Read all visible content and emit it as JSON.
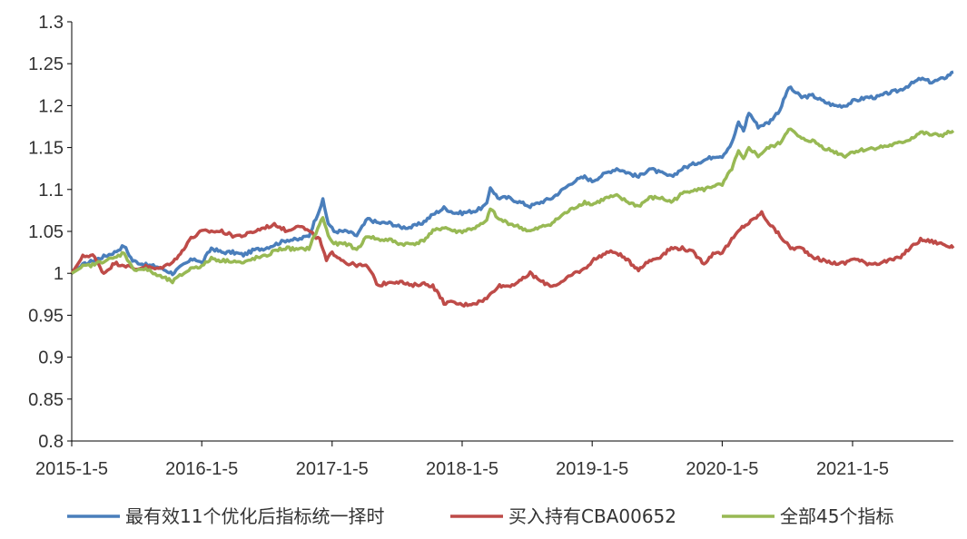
{
  "chart_data": {
    "type": "line",
    "title": "",
    "xlabel": "",
    "ylabel": "",
    "x_range": [
      "2015-01-05",
      "2021-10-15"
    ],
    "x_ticks": [
      "2015-1-5",
      "2016-1-5",
      "2017-1-5",
      "2018-1-5",
      "2019-1-5",
      "2020-1-5",
      "2021-1-5"
    ],
    "ylim": [
      0.8,
      1.3
    ],
    "y_ticks": [
      "0.8",
      "0.85",
      "0.9",
      "0.95",
      "1",
      "1.05",
      "1.1",
      "1.15",
      "1.2",
      "1.25",
      "1.3"
    ],
    "grid": false,
    "legend_position": "bottom",
    "series": [
      {
        "name": "最有效11个优化后指标统一择时",
        "color": "#4a7ebb",
        "points": [
          [
            "2015-01-05",
            1.0
          ],
          [
            "2015-02-05",
            1.01
          ],
          [
            "2015-03-05",
            1.015
          ],
          [
            "2015-04-05",
            1.02
          ],
          [
            "2015-05-05",
            1.025
          ],
          [
            "2015-06-01",
            1.033
          ],
          [
            "2015-06-25",
            1.015
          ],
          [
            "2015-08-01",
            1.01
          ],
          [
            "2015-09-01",
            1.008
          ],
          [
            "2015-10-15",
            1.0
          ],
          [
            "2015-11-15",
            1.01
          ],
          [
            "2015-12-15",
            1.018
          ],
          [
            "2016-01-05",
            1.012
          ],
          [
            "2016-02-01",
            1.03
          ],
          [
            "2016-03-01",
            1.025
          ],
          [
            "2016-04-01",
            1.025
          ],
          [
            "2016-05-01",
            1.022
          ],
          [
            "2016-06-01",
            1.028
          ],
          [
            "2016-07-01",
            1.03
          ],
          [
            "2016-08-01",
            1.035
          ],
          [
            "2016-09-01",
            1.04
          ],
          [
            "2016-10-01",
            1.04
          ],
          [
            "2016-11-01",
            1.045
          ],
          [
            "2016-12-10",
            1.087
          ],
          [
            "2016-12-25",
            1.06
          ],
          [
            "2017-01-10",
            1.05
          ],
          [
            "2017-02-15",
            1.05
          ],
          [
            "2017-03-15",
            1.045
          ],
          [
            "2017-04-15",
            1.065
          ],
          [
            "2017-05-15",
            1.06
          ],
          [
            "2017-06-15",
            1.06
          ],
          [
            "2017-07-15",
            1.055
          ],
          [
            "2017-08-15",
            1.055
          ],
          [
            "2017-09-15",
            1.06
          ],
          [
            "2017-10-15",
            1.07
          ],
          [
            "2017-11-15",
            1.078
          ],
          [
            "2017-12-15",
            1.072
          ],
          [
            "2018-01-05",
            1.072
          ],
          [
            "2018-02-15",
            1.075
          ],
          [
            "2018-03-15",
            1.082
          ],
          [
            "2018-03-25",
            1.103
          ],
          [
            "2018-04-15",
            1.09
          ],
          [
            "2018-05-15",
            1.09
          ],
          [
            "2018-06-15",
            1.085
          ],
          [
            "2018-07-15",
            1.08
          ],
          [
            "2018-08-15",
            1.085
          ],
          [
            "2018-09-15",
            1.09
          ],
          [
            "2018-10-15",
            1.1
          ],
          [
            "2018-11-15",
            1.11
          ],
          [
            "2018-12-15",
            1.115
          ],
          [
            "2019-01-05",
            1.11
          ],
          [
            "2019-02-15",
            1.12
          ],
          [
            "2019-03-15",
            1.125
          ],
          [
            "2019-04-15",
            1.12
          ],
          [
            "2019-05-15",
            1.115
          ],
          [
            "2019-06-15",
            1.125
          ],
          [
            "2019-07-15",
            1.12
          ],
          [
            "2019-08-15",
            1.115
          ],
          [
            "2019-09-15",
            1.125
          ],
          [
            "2019-10-15",
            1.13
          ],
          [
            "2019-11-15",
            1.135
          ],
          [
            "2019-12-15",
            1.14
          ],
          [
            "2020-01-05",
            1.14
          ],
          [
            "2020-02-01",
            1.155
          ],
          [
            "2020-02-20",
            1.18
          ],
          [
            "2020-03-05",
            1.17
          ],
          [
            "2020-03-20",
            1.192
          ],
          [
            "2020-04-15",
            1.175
          ],
          [
            "2020-05-15",
            1.18
          ],
          [
            "2020-06-15",
            1.195
          ],
          [
            "2020-07-10",
            1.222
          ],
          [
            "2020-08-15",
            1.21
          ],
          [
            "2020-09-15",
            1.212
          ],
          [
            "2020-10-15",
            1.205
          ],
          [
            "2020-11-15",
            1.2
          ],
          [
            "2020-12-15",
            1.2
          ],
          [
            "2021-01-05",
            1.205
          ],
          [
            "2021-02-15",
            1.21
          ],
          [
            "2021-03-15",
            1.21
          ],
          [
            "2021-04-15",
            1.215
          ],
          [
            "2021-05-15",
            1.218
          ],
          [
            "2021-06-15",
            1.225
          ],
          [
            "2021-07-15",
            1.232
          ],
          [
            "2021-08-15",
            1.228
          ],
          [
            "2021-09-15",
            1.232
          ],
          [
            "2021-10-15",
            1.24
          ]
        ]
      },
      {
        "name": "买入持有CBA00652",
        "color": "#be4b48",
        "points": [
          [
            "2015-01-05",
            1.0
          ],
          [
            "2015-02-05",
            1.02
          ],
          [
            "2015-03-05",
            1.022
          ],
          [
            "2015-04-05",
            1.0
          ],
          [
            "2015-05-05",
            1.012
          ],
          [
            "2015-06-01",
            1.01
          ],
          [
            "2015-07-01",
            1.005
          ],
          [
            "2015-08-01",
            1.008
          ],
          [
            "2015-09-01",
            1.005
          ],
          [
            "2015-10-01",
            1.01
          ],
          [
            "2015-11-01",
            1.02
          ],
          [
            "2015-12-01",
            1.04
          ],
          [
            "2016-01-05",
            1.05
          ],
          [
            "2016-02-01",
            1.05
          ],
          [
            "2016-03-01",
            1.05
          ],
          [
            "2016-04-01",
            1.045
          ],
          [
            "2016-05-01",
            1.045
          ],
          [
            "2016-06-01",
            1.05
          ],
          [
            "2016-07-01",
            1.055
          ],
          [
            "2016-08-01",
            1.058
          ],
          [
            "2016-09-01",
            1.05
          ],
          [
            "2016-10-01",
            1.058
          ],
          [
            "2016-11-01",
            1.05
          ],
          [
            "2016-12-01",
            1.04
          ],
          [
            "2016-12-20",
            1.015
          ],
          [
            "2017-01-05",
            1.025
          ],
          [
            "2017-02-15",
            1.012
          ],
          [
            "2017-03-15",
            1.01
          ],
          [
            "2017-04-15",
            1.008
          ],
          [
            "2017-05-15",
            0.985
          ],
          [
            "2017-06-15",
            0.99
          ],
          [
            "2017-07-15",
            0.99
          ],
          [
            "2017-08-15",
            0.985
          ],
          [
            "2017-09-15",
            0.988
          ],
          [
            "2017-10-15",
            0.985
          ],
          [
            "2017-11-15",
            0.965
          ],
          [
            "2017-12-15",
            0.965
          ],
          [
            "2018-01-05",
            0.962
          ],
          [
            "2018-02-15",
            0.965
          ],
          [
            "2018-03-15",
            0.97
          ],
          [
            "2018-04-15",
            0.985
          ],
          [
            "2018-05-15",
            0.985
          ],
          [
            "2018-06-15",
            0.99
          ],
          [
            "2018-07-15",
            1.0
          ],
          [
            "2018-08-15",
            0.99
          ],
          [
            "2018-09-15",
            0.985
          ],
          [
            "2018-10-15",
            0.99
          ],
          [
            "2018-11-15",
            1.0
          ],
          [
            "2018-12-15",
            1.005
          ],
          [
            "2019-01-05",
            1.015
          ],
          [
            "2019-02-15",
            1.025
          ],
          [
            "2019-03-15",
            1.025
          ],
          [
            "2019-04-15",
            1.015
          ],
          [
            "2019-05-15",
            1.005
          ],
          [
            "2019-06-15",
            1.015
          ],
          [
            "2019-07-15",
            1.02
          ],
          [
            "2019-08-15",
            1.03
          ],
          [
            "2019-09-15",
            1.03
          ],
          [
            "2019-10-15",
            1.025
          ],
          [
            "2019-11-15",
            1.012
          ],
          [
            "2019-12-15",
            1.025
          ],
          [
            "2020-01-05",
            1.025
          ],
          [
            "2020-02-01",
            1.04
          ],
          [
            "2020-03-01",
            1.055
          ],
          [
            "2020-03-20",
            1.06
          ],
          [
            "2020-04-25",
            1.072
          ],
          [
            "2020-05-15",
            1.06
          ],
          [
            "2020-06-15",
            1.045
          ],
          [
            "2020-07-15",
            1.03
          ],
          [
            "2020-08-15",
            1.03
          ],
          [
            "2020-09-15",
            1.02
          ],
          [
            "2020-10-15",
            1.015
          ],
          [
            "2020-11-15",
            1.012
          ],
          [
            "2020-12-15",
            1.012
          ],
          [
            "2021-01-05",
            1.018
          ],
          [
            "2021-02-15",
            1.012
          ],
          [
            "2021-03-15",
            1.012
          ],
          [
            "2021-04-15",
            1.015
          ],
          [
            "2021-05-15",
            1.018
          ],
          [
            "2021-06-15",
            1.03
          ],
          [
            "2021-07-15",
            1.04
          ],
          [
            "2021-08-15",
            1.038
          ],
          [
            "2021-09-15",
            1.035
          ],
          [
            "2021-10-15",
            1.03
          ]
        ]
      },
      {
        "name": "全部45个指标",
        "color": "#98b954",
        "points": [
          [
            "2015-01-05",
            1.0
          ],
          [
            "2015-02-05",
            1.008
          ],
          [
            "2015-03-05",
            1.01
          ],
          [
            "2015-04-05",
            1.015
          ],
          [
            "2015-05-05",
            1.018
          ],
          [
            "2015-06-01",
            1.025
          ],
          [
            "2015-06-25",
            1.005
          ],
          [
            "2015-08-01",
            1.005
          ],
          [
            "2015-09-01",
            0.998
          ],
          [
            "2015-10-15",
            0.99
          ],
          [
            "2015-11-15",
            1.0
          ],
          [
            "2015-12-15",
            1.008
          ],
          [
            "2016-01-05",
            1.008
          ],
          [
            "2016-02-01",
            1.018
          ],
          [
            "2016-03-01",
            1.015
          ],
          [
            "2016-04-01",
            1.015
          ],
          [
            "2016-05-01",
            1.012
          ],
          [
            "2016-06-01",
            1.018
          ],
          [
            "2016-07-01",
            1.02
          ],
          [
            "2016-08-01",
            1.028
          ],
          [
            "2016-09-01",
            1.03
          ],
          [
            "2016-10-01",
            1.028
          ],
          [
            "2016-11-01",
            1.03
          ],
          [
            "2016-12-10",
            1.067
          ],
          [
            "2016-12-25",
            1.045
          ],
          [
            "2017-01-10",
            1.035
          ],
          [
            "2017-02-15",
            1.035
          ],
          [
            "2017-03-15",
            1.028
          ],
          [
            "2017-04-15",
            1.045
          ],
          [
            "2017-05-15",
            1.04
          ],
          [
            "2017-06-15",
            1.04
          ],
          [
            "2017-07-15",
            1.035
          ],
          [
            "2017-08-15",
            1.035
          ],
          [
            "2017-09-15",
            1.038
          ],
          [
            "2017-10-15",
            1.05
          ],
          [
            "2017-11-15",
            1.055
          ],
          [
            "2017-12-15",
            1.05
          ],
          [
            "2018-01-05",
            1.05
          ],
          [
            "2018-02-15",
            1.055
          ],
          [
            "2018-03-15",
            1.062
          ],
          [
            "2018-03-25",
            1.078
          ],
          [
            "2018-04-15",
            1.065
          ],
          [
            "2018-05-15",
            1.06
          ],
          [
            "2018-06-15",
            1.055
          ],
          [
            "2018-07-15",
            1.05
          ],
          [
            "2018-08-15",
            1.055
          ],
          [
            "2018-09-15",
            1.06
          ],
          [
            "2018-10-15",
            1.07
          ],
          [
            "2018-11-15",
            1.078
          ],
          [
            "2018-12-15",
            1.085
          ],
          [
            "2019-01-05",
            1.082
          ],
          [
            "2019-02-15",
            1.09
          ],
          [
            "2019-03-15",
            1.092
          ],
          [
            "2019-04-15",
            1.085
          ],
          [
            "2019-05-15",
            1.08
          ],
          [
            "2019-06-15",
            1.09
          ],
          [
            "2019-07-15",
            1.09
          ],
          [
            "2019-08-15",
            1.085
          ],
          [
            "2019-09-15",
            1.095
          ],
          [
            "2019-10-15",
            1.1
          ],
          [
            "2019-11-15",
            1.1
          ],
          [
            "2019-12-15",
            1.105
          ],
          [
            "2020-01-05",
            1.105
          ],
          [
            "2020-02-01",
            1.125
          ],
          [
            "2020-02-20",
            1.145
          ],
          [
            "2020-03-05",
            1.135
          ],
          [
            "2020-03-20",
            1.15
          ],
          [
            "2020-04-15",
            1.14
          ],
          [
            "2020-05-15",
            1.15
          ],
          [
            "2020-06-15",
            1.155
          ],
          [
            "2020-07-10",
            1.173
          ],
          [
            "2020-08-15",
            1.16
          ],
          [
            "2020-09-15",
            1.158
          ],
          [
            "2020-10-15",
            1.15
          ],
          [
            "2020-11-15",
            1.145
          ],
          [
            "2020-12-15",
            1.14
          ],
          [
            "2021-01-05",
            1.145
          ],
          [
            "2021-02-15",
            1.148
          ],
          [
            "2021-03-15",
            1.15
          ],
          [
            "2021-04-15",
            1.152
          ],
          [
            "2021-05-15",
            1.155
          ],
          [
            "2021-06-15",
            1.16
          ],
          [
            "2021-07-15",
            1.168
          ],
          [
            "2021-08-15",
            1.165
          ],
          [
            "2021-09-15",
            1.165
          ],
          [
            "2021-10-15",
            1.17
          ]
        ]
      }
    ]
  }
}
